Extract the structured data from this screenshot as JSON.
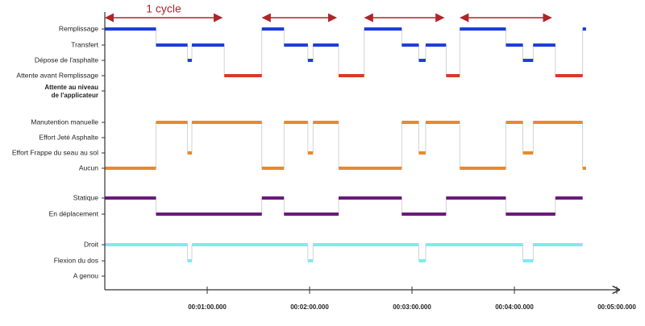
{
  "chart_data": {
    "type": "timeline",
    "annotation": "1 cycle",
    "annotation_color": "#b0242a",
    "cycles": [
      {
        "start": 0,
        "end": 69
      },
      {
        "start": 92,
        "end": 136
      },
      {
        "start": 152,
        "end": 199
      },
      {
        "start": 208,
        "end": 262
      }
    ],
    "xlim": [
      0,
      300
    ],
    "xticks": [
      {
        "value": 60,
        "label": "00:01:00.000"
      },
      {
        "value": 120,
        "label": "00:02:00.000"
      },
      {
        "value": 180,
        "label": "00:03:00.000"
      },
      {
        "value": 240,
        "label": "00:04:00.000"
      },
      {
        "value": 300,
        "label": "00:05:00.000"
      }
    ],
    "groups": [
      {
        "rows": [
          {
            "label": "Remplissage",
            "color": "#1f3fd6"
          },
          {
            "label": "Transfert",
            "color": "#1f3fd6"
          },
          {
            "label": "Dépose de l'asphalte",
            "color": "#1f3fd6"
          },
          {
            "label": "Attente avant Remplissage",
            "color": "#d83a2a"
          },
          {
            "label": [
              "Attente au niveau",
              "de l'applicateur"
            ],
            "color": "#1f3fd6",
            "bold": true
          }
        ],
        "segments": [
          {
            "row": 0,
            "start": 0,
            "end": 30
          },
          {
            "row": 1,
            "start": 30,
            "end": 48.5
          },
          {
            "row": 2,
            "start": 48.5,
            "end": 51
          },
          {
            "row": 1,
            "start": 51,
            "end": 70
          },
          {
            "row": 3,
            "start": 70,
            "end": 92
          },
          {
            "row": 0,
            "start": 92,
            "end": 105
          },
          {
            "row": 1,
            "start": 105,
            "end": 119
          },
          {
            "row": 2,
            "start": 119,
            "end": 122
          },
          {
            "row": 1,
            "start": 122,
            "end": 137
          },
          {
            "row": 3,
            "start": 137,
            "end": 152
          },
          {
            "row": 0,
            "start": 152,
            "end": 174
          },
          {
            "row": 1,
            "start": 174,
            "end": 184
          },
          {
            "row": 2,
            "start": 184,
            "end": 188
          },
          {
            "row": 1,
            "start": 188,
            "end": 200
          },
          {
            "row": 3,
            "start": 200,
            "end": 208
          },
          {
            "row": 0,
            "start": 208,
            "end": 235
          },
          {
            "row": 1,
            "start": 235,
            "end": 245
          },
          {
            "row": 2,
            "start": 245,
            "end": 251
          },
          {
            "row": 1,
            "start": 251,
            "end": 264
          },
          {
            "row": 3,
            "start": 264,
            "end": 280
          },
          {
            "row": 0,
            "start": 280,
            "end": 282
          }
        ]
      },
      {
        "rows": [
          {
            "label": "Manutention manuelle",
            "color": "#e8892f"
          },
          {
            "label": "Effort Jeté Asphalte",
            "color": "#e8892f"
          },
          {
            "label": "Effort Frappe du seau au sol",
            "color": "#e8892f"
          },
          {
            "label": "Aucun",
            "color": "#e8892f"
          }
        ],
        "segments": [
          {
            "row": 3,
            "start": 0,
            "end": 30
          },
          {
            "row": 0,
            "start": 30,
            "end": 48.5
          },
          {
            "row": 2,
            "start": 48.5,
            "end": 51
          },
          {
            "row": 0,
            "start": 51,
            "end": 92
          },
          {
            "row": 3,
            "start": 92,
            "end": 105
          },
          {
            "row": 0,
            "start": 105,
            "end": 119
          },
          {
            "row": 2,
            "start": 119,
            "end": 122
          },
          {
            "row": 0,
            "start": 122,
            "end": 137
          },
          {
            "row": 3,
            "start": 137,
            "end": 174
          },
          {
            "row": 0,
            "start": 174,
            "end": 184
          },
          {
            "row": 2,
            "start": 184,
            "end": 188
          },
          {
            "row": 0,
            "start": 188,
            "end": 208
          },
          {
            "row": 3,
            "start": 208,
            "end": 235
          },
          {
            "row": 0,
            "start": 235,
            "end": 245
          },
          {
            "row": 2,
            "start": 245,
            "end": 251
          },
          {
            "row": 0,
            "start": 251,
            "end": 280
          },
          {
            "row": 3,
            "start": 280,
            "end": 282
          }
        ]
      },
      {
        "rows": [
          {
            "label": "Statique",
            "color": "#6a1b7a"
          },
          {
            "label": "En déplacement",
            "color": "#6a1b7a"
          }
        ],
        "segments": [
          {
            "row": 0,
            "start": 0,
            "end": 30
          },
          {
            "row": 1,
            "start": 30,
            "end": 92
          },
          {
            "row": 0,
            "start": 92,
            "end": 105
          },
          {
            "row": 1,
            "start": 105,
            "end": 137
          },
          {
            "row": 0,
            "start": 137,
            "end": 174
          },
          {
            "row": 1,
            "start": 174,
            "end": 200
          },
          {
            "row": 0,
            "start": 200,
            "end": 235
          },
          {
            "row": 1,
            "start": 235,
            "end": 264
          },
          {
            "row": 0,
            "start": 264,
            "end": 280
          }
        ]
      },
      {
        "rows": [
          {
            "label": "Droit",
            "color": "#7eeaf2"
          },
          {
            "label": "Flexion du dos",
            "color": "#7eeaf2"
          },
          {
            "label": "A genou",
            "color": "#7eeaf2"
          }
        ],
        "segments": [
          {
            "row": 0,
            "start": 0,
            "end": 48.5
          },
          {
            "row": 1,
            "start": 48.5,
            "end": 51
          },
          {
            "row": 0,
            "start": 51,
            "end": 119
          },
          {
            "row": 1,
            "start": 119,
            "end": 122
          },
          {
            "row": 0,
            "start": 122,
            "end": 184
          },
          {
            "row": 1,
            "start": 184,
            "end": 188
          },
          {
            "row": 0,
            "start": 188,
            "end": 245
          },
          {
            "row": 1,
            "start": 245,
            "end": 251
          },
          {
            "row": 0,
            "start": 251,
            "end": 280
          }
        ]
      }
    ]
  }
}
